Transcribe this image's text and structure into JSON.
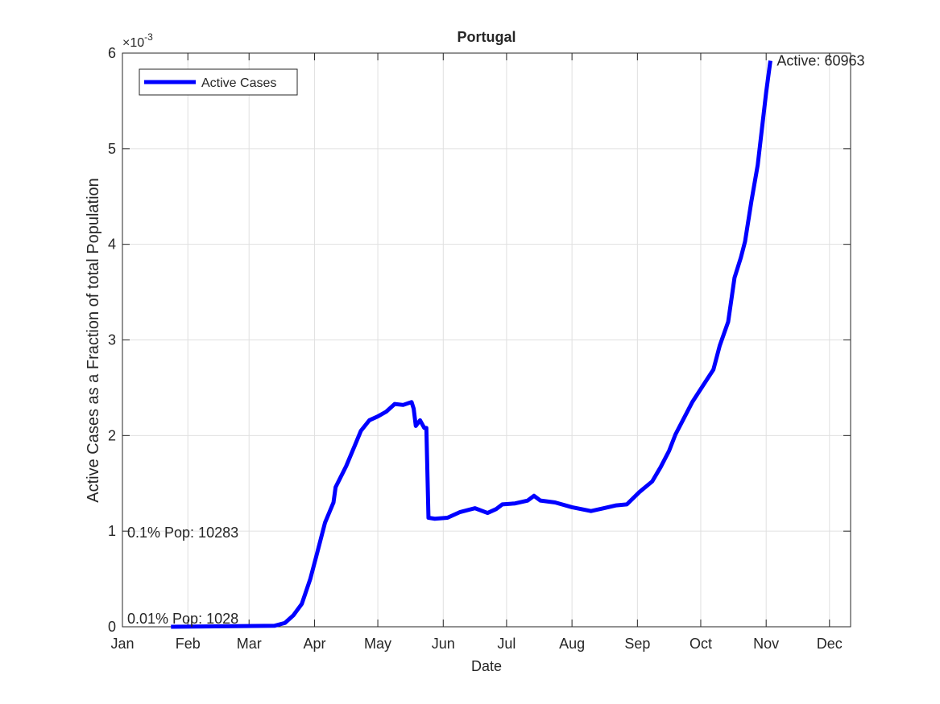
{
  "chart_data": {
    "type": "line",
    "title": "Portugal",
    "x_label": "Date",
    "y_label": "Active Cases as a Fraction of total Population",
    "y_exponent_base": "×10",
    "y_exponent": "-3",
    "xlim": [
      0,
      345
    ],
    "xticks": [
      {
        "value": 0,
        "label": "Jan"
      },
      {
        "value": 31,
        "label": "Feb"
      },
      {
        "value": 60,
        "label": "Mar"
      },
      {
        "value": 91,
        "label": "Apr"
      },
      {
        "value": 121,
        "label": "May"
      },
      {
        "value": 152,
        "label": "Jun"
      },
      {
        "value": 182,
        "label": "Jul"
      },
      {
        "value": 213,
        "label": "Aug"
      },
      {
        "value": 244,
        "label": "Sep"
      },
      {
        "value": 274,
        "label": "Oct"
      },
      {
        "value": 305,
        "label": "Nov"
      },
      {
        "value": 335,
        "label": "Dec"
      }
    ],
    "ylim": [
      0,
      6
    ],
    "yticks": [
      0,
      1,
      2,
      3,
      4,
      5,
      6
    ],
    "grid": true,
    "legend_position": "upper-left",
    "series": [
      {
        "name": "Active Cases",
        "color": "#0000ff",
        "x": [
          23,
          72,
          77,
          81,
          85,
          89,
          92,
          96,
          100,
          101,
          106,
          110,
          113,
          117,
          121,
          125,
          129,
          133,
          137,
          138,
          139,
          141,
          143,
          144,
          145,
          148,
          154,
          160,
          167,
          173,
          177,
          180,
          186,
          192,
          195,
          198,
          205,
          213,
          222,
          228,
          234,
          239,
          245,
          251,
          255,
          259,
          262,
          266,
          270,
          275,
          280,
          283,
          287,
          290,
          293,
          295,
          298,
          301,
          303,
          305,
          307
        ],
        "values": [
          0,
          0.01,
          0.04,
          0.12,
          0.24,
          0.5,
          0.75,
          1.09,
          1.3,
          1.46,
          1.68,
          1.89,
          2.05,
          2.16,
          2.2,
          2.25,
          2.33,
          2.32,
          2.35,
          2.28,
          2.1,
          2.16,
          2.08,
          2.08,
          1.14,
          1.13,
          1.14,
          1.2,
          1.24,
          1.19,
          1.23,
          1.28,
          1.29,
          1.32,
          1.37,
          1.32,
          1.3,
          1.25,
          1.21,
          1.24,
          1.27,
          1.28,
          1.41,
          1.52,
          1.67,
          1.84,
          2.01,
          2.18,
          2.35,
          2.52,
          2.69,
          2.94,
          3.19,
          3.65,
          3.86,
          4.03,
          4.45,
          4.83,
          5.21,
          5.59,
          5.92
        ]
      }
    ],
    "annotations": [
      {
        "text": "Active: 60963"
      },
      {
        "text": "0.1% Pop: 10283",
        "y": 1
      },
      {
        "text": "0.01% Pop: 1028",
        "y": 0.1
      }
    ]
  }
}
